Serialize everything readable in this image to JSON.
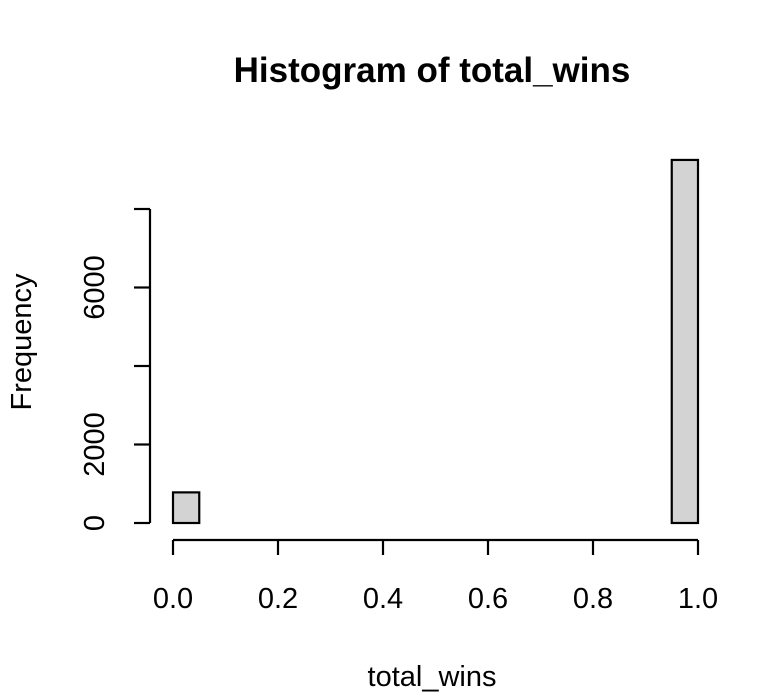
{
  "chart_data": {
    "type": "bar",
    "title": "Histogram of total_wins",
    "xlabel": "total_wins",
    "ylabel": "Frequency",
    "bin_width": 0.05,
    "bins": [
      {
        "start": 0.0,
        "end": 0.05,
        "count": 780
      },
      {
        "start": 0.05,
        "end": 0.1,
        "count": 0
      },
      {
        "start": 0.1,
        "end": 0.15,
        "count": 0
      },
      {
        "start": 0.15,
        "end": 0.2,
        "count": 0
      },
      {
        "start": 0.2,
        "end": 0.25,
        "count": 0
      },
      {
        "start": 0.25,
        "end": 0.3,
        "count": 0
      },
      {
        "start": 0.3,
        "end": 0.35,
        "count": 0
      },
      {
        "start": 0.35,
        "end": 0.4,
        "count": 0
      },
      {
        "start": 0.4,
        "end": 0.45,
        "count": 0
      },
      {
        "start": 0.45,
        "end": 0.5,
        "count": 0
      },
      {
        "start": 0.5,
        "end": 0.55,
        "count": 0
      },
      {
        "start": 0.55,
        "end": 0.6,
        "count": 0
      },
      {
        "start": 0.6,
        "end": 0.65,
        "count": 0
      },
      {
        "start": 0.65,
        "end": 0.7,
        "count": 0
      },
      {
        "start": 0.7,
        "end": 0.75,
        "count": 0
      },
      {
        "start": 0.75,
        "end": 0.8,
        "count": 0
      },
      {
        "start": 0.8,
        "end": 0.85,
        "count": 0
      },
      {
        "start": 0.85,
        "end": 0.9,
        "count": 0
      },
      {
        "start": 0.9,
        "end": 0.95,
        "count": 0
      },
      {
        "start": 0.95,
        "end": 1.0,
        "count": 9250
      }
    ],
    "xlim": [
      0,
      1
    ],
    "ylim": [
      0,
      9250
    ],
    "x_ticks": [
      {
        "value": 0.0,
        "label": "0.0"
      },
      {
        "value": 0.2,
        "label": "0.2"
      },
      {
        "value": 0.4,
        "label": "0.4"
      },
      {
        "value": 0.6,
        "label": "0.6"
      },
      {
        "value": 0.8,
        "label": "0.8"
      },
      {
        "value": 1.0,
        "label": "1.0"
      }
    ],
    "y_ticks": [
      {
        "value": 0,
        "label": "0"
      },
      {
        "value": 2000,
        "label": "2000"
      },
      {
        "value": 4000,
        "label": ""
      },
      {
        "value": 6000,
        "label": "6000"
      },
      {
        "value": 8000,
        "label": ""
      }
    ],
    "y_axis_max": 8000,
    "grid": false,
    "colors": {
      "bar_fill": "#d3d3d3",
      "bar_stroke": "#000000"
    }
  }
}
